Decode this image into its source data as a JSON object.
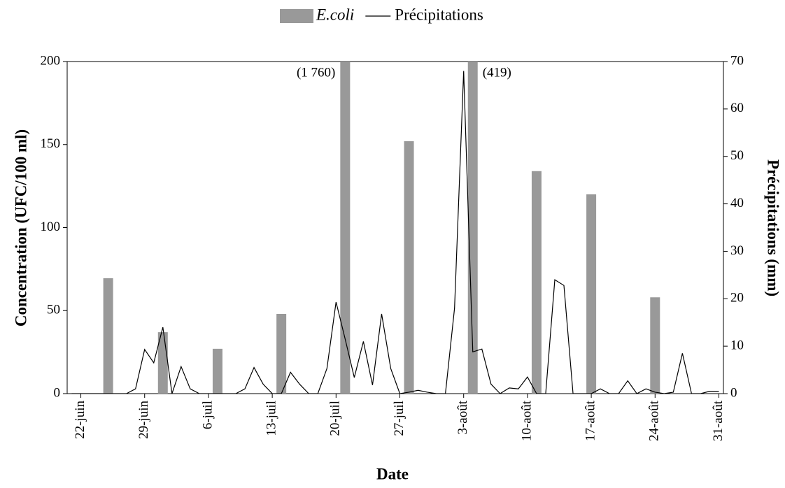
{
  "chart_data": {
    "type": "bar",
    "legend": "top",
    "x_label": "Date",
    "y_label": "Concentration (UFC/100 ml)",
    "y2_label": "Précipitations (mm)",
    "categories": [
      null,
      "22-juin",
      null,
      null,
      null,
      null,
      null,
      null,
      "29-juin",
      null,
      null,
      null,
      null,
      null,
      null,
      "6-juil",
      null,
      null,
      null,
      null,
      null,
      null,
      "13-juil",
      null,
      null,
      null,
      null,
      null,
      null,
      "20-juil",
      null,
      null,
      null,
      null,
      null,
      null,
      "27-juil",
      null,
      null,
      null,
      null,
      null,
      null,
      "3-août",
      null,
      null,
      null,
      null,
      null,
      null,
      "10-août",
      null,
      null,
      null,
      null,
      null,
      null,
      "17-août",
      null,
      null,
      null,
      null,
      null,
      null,
      "24-août",
      null,
      null,
      null,
      null,
      null,
      null,
      "31-août"
    ],
    "ylim": [
      0,
      200
    ],
    "yticks": [
      0,
      50,
      100,
      150,
      200
    ],
    "y2lim": [
      0,
      70
    ],
    "y2ticks": [
      0,
      10,
      20,
      30,
      40,
      50,
      60,
      70
    ],
    "series": [
      {
        "name": "E.coli",
        "type": "bar",
        "color": "#999999",
        "values": [
          null,
          null,
          null,
          null,
          69.5,
          null,
          null,
          null,
          null,
          null,
          37,
          null,
          null,
          null,
          null,
          null,
          27,
          null,
          null,
          null,
          null,
          null,
          null,
          48,
          null,
          null,
          null,
          null,
          null,
          null,
          1760,
          null,
          null,
          null,
          null,
          null,
          null,
          152,
          null,
          null,
          null,
          null,
          null,
          null,
          419,
          null,
          null,
          null,
          null,
          null,
          null,
          134,
          null,
          null,
          null,
          null,
          null,
          120,
          null,
          null,
          null,
          null,
          null,
          null,
          58,
          null,
          null,
          null,
          null,
          null,
          null,
          null
        ],
        "value_labels": [
          null,
          null,
          null,
          null,
          null,
          null,
          null,
          null,
          null,
          null,
          null,
          null,
          null,
          null,
          null,
          null,
          null,
          null,
          null,
          null,
          null,
          null,
          null,
          null,
          null,
          null,
          null,
          null,
          null,
          null,
          "(1 760)",
          null,
          null,
          null,
          null,
          null,
          null,
          null,
          null,
          null,
          null,
          null,
          null,
          null,
          "(419)",
          null,
          null,
          null,
          null,
          null,
          null,
          null,
          null,
          null,
          null,
          null,
          null,
          null,
          null,
          null,
          null,
          null,
          null,
          null,
          null,
          null,
          null,
          null,
          null,
          null,
          null,
          null
        ]
      },
      {
        "name": "Précipitations",
        "type": "line",
        "axis": "y2",
        "color": "#000000",
        "values": [
          0,
          0,
          0,
          0,
          0,
          0,
          0,
          1,
          9.3,
          6.5,
          14,
          0,
          5.7,
          1,
          0,
          0,
          0,
          0,
          0,
          1,
          5.5,
          2,
          0,
          0,
          4.5,
          2,
          0,
          0,
          5.3,
          19.3,
          11.5,
          3.4,
          11,
          1.8,
          16.8,
          5.3,
          0,
          0.3,
          0.7,
          0.3,
          0,
          0,
          18,
          68,
          8.8,
          9.4,
          2,
          0,
          1.2,
          1,
          3.5,
          0,
          0,
          24,
          22.8,
          0,
          0,
          0,
          1,
          0,
          0,
          2.7,
          0,
          1,
          0.3,
          0,
          0.3,
          8.5,
          0,
          0,
          0.5,
          0.5
        ]
      }
    ]
  }
}
